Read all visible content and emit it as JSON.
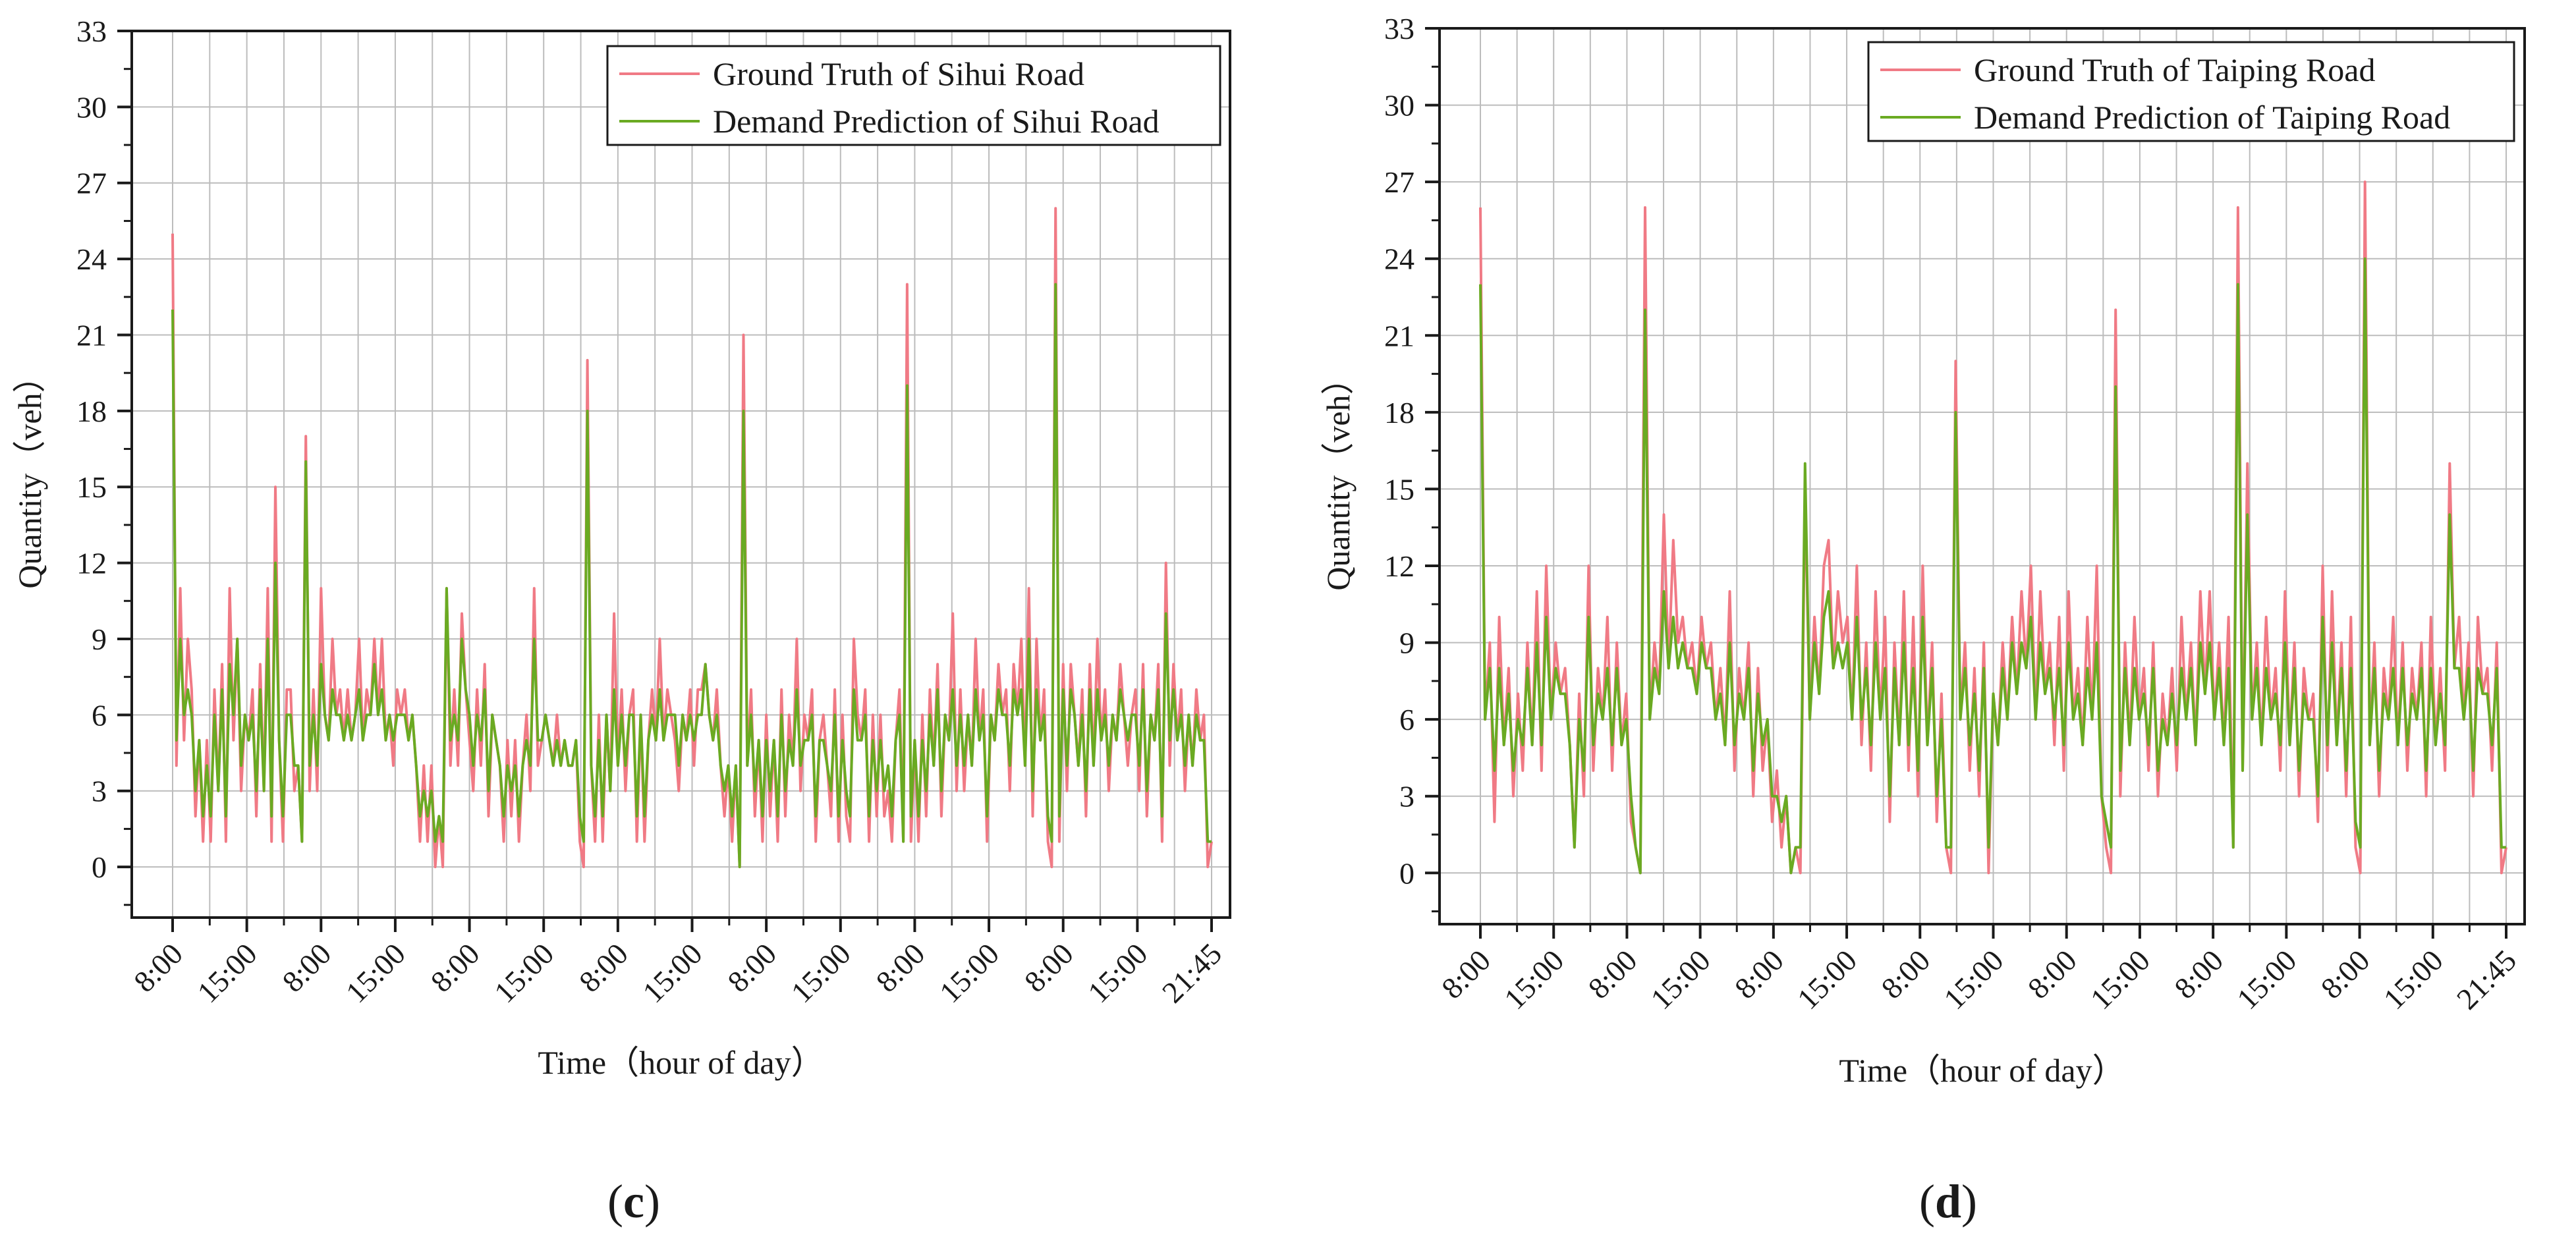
{
  "chart_data": [
    {
      "type": "line",
      "panel_label_open": "(",
      "panel_label_letter": "c",
      "panel_label_close": ")",
      "xlabel": "Time（hour of day）",
      "ylabel": "Quantity（veh）",
      "ylim": [
        -2,
        33
      ],
      "yticks": [
        0,
        3,
        6,
        9,
        12,
        15,
        18,
        21,
        24,
        27,
        30,
        33
      ],
      "x_range": [
        0,
        420
      ],
      "x_ticks": [
        {
          "x": 0,
          "label": "8:00"
        },
        {
          "x": 30,
          "label": "15:00"
        },
        {
          "x": 60,
          "label": "8:00"
        },
        {
          "x": 90,
          "label": "15:00"
        },
        {
          "x": 120,
          "label": "8:00"
        },
        {
          "x": 150,
          "label": "15:00"
        },
        {
          "x": 180,
          "label": "8:00"
        },
        {
          "x": 210,
          "label": "15:00"
        },
        {
          "x": 240,
          "label": "8:00"
        },
        {
          "x": 270,
          "label": "15:00"
        },
        {
          "x": 300,
          "label": "8:00"
        },
        {
          "x": 330,
          "label": "15:00"
        },
        {
          "x": 360,
          "label": "8:00"
        },
        {
          "x": 390,
          "label": "15:00"
        },
        {
          "x": 420,
          "label": "21:45"
        }
      ],
      "grid": true,
      "legend": "top-right",
      "series": [
        {
          "name": "Ground Truth of Sihui Road",
          "color": "#f07a85",
          "values": [
            25,
            4,
            11,
            5,
            9,
            7,
            2,
            5,
            1,
            5,
            1,
            7,
            3,
            8,
            1,
            11,
            5,
            9,
            3,
            6,
            5,
            7,
            2,
            8,
            3,
            11,
            1,
            15,
            5,
            1,
            7,
            7,
            3,
            4,
            1,
            17,
            3,
            7,
            3,
            11,
            6,
            5,
            9,
            6,
            7,
            5,
            7,
            5,
            6,
            9,
            5,
            7,
            6,
            9,
            6,
            9,
            5,
            6,
            4,
            7,
            6,
            7,
            5,
            6,
            4,
            1,
            4,
            1,
            4,
            0,
            2,
            0,
            11,
            4,
            7,
            4,
            10,
            7,
            5,
            3,
            7,
            4,
            8,
            2,
            6,
            5,
            4,
            1,
            5,
            2,
            5,
            1,
            4,
            6,
            3,
            11,
            4,
            5,
            6,
            5,
            4,
            6,
            4,
            5,
            4,
            4,
            5,
            1,
            0,
            20,
            4,
            1,
            6,
            1,
            6,
            3,
            10,
            4,
            7,
            3,
            6,
            7,
            1,
            6,
            1,
            5,
            7,
            5,
            9,
            5,
            7,
            6,
            5,
            3,
            6,
            5,
            7,
            4,
            7,
            7,
            8,
            6,
            5,
            7,
            4,
            2,
            4,
            1,
            4,
            0,
            21,
            4,
            7,
            2,
            5,
            1,
            6,
            2,
            5,
            1,
            7,
            2,
            6,
            4,
            9,
            3,
            6,
            5,
            7,
            1,
            5,
            6,
            4,
            2,
            7,
            1,
            6,
            2,
            1,
            9,
            6,
            5,
            7,
            1,
            6,
            2,
            6,
            2,
            3,
            1,
            5,
            7,
            1,
            23,
            1,
            5,
            1,
            6,
            2,
            7,
            4,
            8,
            2,
            6,
            5,
            10,
            3,
            7,
            3,
            6,
            4,
            9,
            5,
            7,
            1,
            6,
            5,
            8,
            6,
            7,
            3,
            8,
            6,
            9,
            4,
            11,
            2,
            9,
            5,
            7,
            1,
            0,
            26,
            1,
            8,
            3,
            8,
            6,
            4,
            7,
            2,
            8,
            4,
            9,
            5,
            7,
            3,
            6,
            5,
            8,
            6,
            4,
            6,
            7,
            3,
            8,
            2,
            6,
            5,
            8,
            1,
            12,
            4,
            8,
            5,
            7,
            3,
            6,
            4,
            7,
            5,
            6,
            0,
            1
          ]
        },
        {
          "name": "Demand Prediction of Sihui Road",
          "color": "#6aaa22",
          "values": [
            22,
            5,
            9,
            6,
            7,
            6,
            3,
            5,
            2,
            4,
            2,
            6,
            3,
            7,
            2,
            8,
            6,
            9,
            4,
            6,
            5,
            6,
            3,
            7,
            3,
            9,
            2,
            12,
            5,
            2,
            6,
            6,
            4,
            4,
            1,
            16,
            4,
            6,
            4,
            8,
            6,
            5,
            7,
            6,
            6,
            5,
            6,
            5,
            6,
            7,
            5,
            6,
            6,
            8,
            6,
            7,
            5,
            6,
            5,
            6,
            6,
            6,
            5,
            6,
            4,
            2,
            3,
            2,
            3,
            1,
            2,
            1,
            11,
            5,
            6,
            5,
            9,
            7,
            6,
            4,
            6,
            5,
            7,
            3,
            6,
            5,
            4,
            2,
            4,
            3,
            4,
            2,
            4,
            5,
            4,
            9,
            5,
            5,
            6,
            5,
            4,
            5,
            4,
            5,
            4,
            4,
            5,
            2,
            1,
            18,
            4,
            2,
            5,
            2,
            6,
            3,
            7,
            4,
            6,
            4,
            6,
            6,
            2,
            6,
            2,
            5,
            6,
            5,
            7,
            5,
            6,
            6,
            6,
            4,
            6,
            5,
            6,
            5,
            6,
            6,
            8,
            6,
            5,
            6,
            4,
            3,
            4,
            2,
            4,
            0,
            18,
            4,
            6,
            3,
            5,
            2,
            5,
            3,
            5,
            2,
            6,
            3,
            5,
            4,
            7,
            4,
            5,
            5,
            6,
            2,
            5,
            5,
            4,
            3,
            6,
            2,
            5,
            3,
            2,
            7,
            5,
            5,
            6,
            2,
            5,
            3,
            5,
            3,
            4,
            2,
            5,
            6,
            1,
            19,
            2,
            5,
            2,
            5,
            3,
            6,
            4,
            7,
            3,
            6,
            5,
            7,
            4,
            6,
            4,
            6,
            4,
            7,
            5,
            6,
            2,
            6,
            5,
            7,
            6,
            6,
            4,
            7,
            6,
            7,
            4,
            9,
            3,
            7,
            5,
            6,
            2,
            1,
            23,
            2,
            7,
            4,
            7,
            6,
            4,
            6,
            3,
            7,
            4,
            7,
            5,
            6,
            4,
            6,
            5,
            7,
            6,
            5,
            6,
            6,
            4,
            7,
            3,
            6,
            5,
            7,
            2,
            10,
            5,
            7,
            5,
            6,
            4,
            6,
            4,
            6,
            5,
            5,
            1,
            1
          ]
        }
      ]
    },
    {
      "type": "line",
      "panel_label_open": "(",
      "panel_label_letter": "d",
      "panel_label_close": ")",
      "xlabel": "Time（hour of day）",
      "ylabel": "Quantity（veh）",
      "ylim": [
        -2,
        33
      ],
      "yticks": [
        0,
        3,
        6,
        9,
        12,
        15,
        18,
        21,
        24,
        27,
        30,
        33
      ],
      "x_range": [
        0,
        420
      ],
      "x_ticks": [
        {
          "x": 0,
          "label": "8:00"
        },
        {
          "x": 30,
          "label": "15:00"
        },
        {
          "x": 60,
          "label": "8:00"
        },
        {
          "x": 90,
          "label": "15:00"
        },
        {
          "x": 120,
          "label": "8:00"
        },
        {
          "x": 150,
          "label": "15:00"
        },
        {
          "x": 180,
          "label": "8:00"
        },
        {
          "x": 210,
          "label": "15:00"
        },
        {
          "x": 240,
          "label": "8:00"
        },
        {
          "x": 270,
          "label": "15:00"
        },
        {
          "x": 300,
          "label": "8:00"
        },
        {
          "x": 330,
          "label": "15:00"
        },
        {
          "x": 360,
          "label": "8:00"
        },
        {
          "x": 390,
          "label": "15:00"
        },
        {
          "x": 420,
          "label": "21:45"
        }
      ],
      "grid": true,
      "legend": "top-right",
      "series": [
        {
          "name": "Ground Truth of Taiping Road",
          "color": "#f07a85",
          "values": [
            26,
            6,
            9,
            2,
            10,
            5,
            8,
            3,
            7,
            4,
            9,
            5,
            11,
            4,
            12,
            6,
            9,
            7,
            8,
            5,
            1,
            7,
            3,
            12,
            4,
            8,
            6,
            10,
            4,
            9,
            5,
            7,
            2,
            1,
            0,
            26,
            6,
            9,
            7,
            14,
            8,
            13,
            9,
            10,
            8,
            9,
            7,
            10,
            8,
            9,
            6,
            8,
            5,
            11,
            4,
            8,
            6,
            9,
            3,
            8,
            4,
            6,
            2,
            4,
            1,
            3,
            0,
            1,
            0,
            15,
            6,
            10,
            7,
            12,
            13,
            8,
            11,
            9,
            10,
            6,
            12,
            5,
            9,
            4,
            11,
            6,
            10,
            2,
            9,
            5,
            11,
            4,
            10,
            3,
            12,
            5,
            9,
            2,
            7,
            1,
            0,
            20,
            6,
            9,
            4,
            8,
            3,
            9,
            0,
            7,
            5,
            9,
            6,
            10,
            7,
            11,
            8,
            12,
            6,
            11,
            7,
            9,
            5,
            10,
            4,
            11,
            6,
            8,
            5,
            10,
            6,
            12,
            3,
            1,
            0,
            22,
            3,
            9,
            5,
            10,
            6,
            8,
            4,
            9,
            3,
            7,
            5,
            8,
            4,
            10,
            6,
            9,
            5,
            11,
            7,
            11,
            6,
            9,
            5,
            10,
            1,
            26,
            4,
            16,
            6,
            9,
            5,
            10,
            6,
            8,
            4,
            11,
            5,
            9,
            3,
            8,
            6,
            7,
            2,
            12,
            4,
            11,
            5,
            9,
            3,
            10,
            1,
            0,
            27,
            5,
            9,
            3,
            8,
            6,
            10,
            5,
            9,
            4,
            8,
            6,
            9,
            3,
            10,
            5,
            8,
            4,
            16,
            8,
            10,
            6,
            9,
            3,
            10,
            7,
            8,
            4,
            9,
            0,
            1
          ]
        },
        {
          "name": "Demand Prediction of Taiping Road",
          "color": "#6aaa22",
          "values": [
            23,
            6,
            8,
            4,
            8,
            5,
            7,
            4,
            6,
            5,
            8,
            5,
            9,
            5,
            10,
            6,
            8,
            7,
            7,
            5,
            1,
            6,
            4,
            10,
            5,
            7,
            6,
            8,
            5,
            8,
            5,
            6,
            3,
            1,
            0,
            22,
            6,
            8,
            7,
            11,
            8,
            10,
            8,
            9,
            8,
            8,
            7,
            9,
            8,
            8,
            6,
            7,
            5,
            9,
            5,
            7,
            6,
            8,
            4,
            7,
            5,
            6,
            3,
            3,
            2,
            3,
            0,
            1,
            1,
            16,
            6,
            9,
            7,
            10,
            11,
            8,
            9,
            8,
            9,
            6,
            10,
            6,
            8,
            5,
            9,
            6,
            8,
            3,
            8,
            5,
            9,
            5,
            8,
            4,
            10,
            5,
            8,
            3,
            6,
            1,
            1,
            18,
            6,
            8,
            5,
            7,
            4,
            8,
            1,
            7,
            5,
            8,
            6,
            9,
            7,
            9,
            8,
            10,
            6,
            9,
            7,
            8,
            6,
            8,
            5,
            9,
            6,
            7,
            5,
            8,
            6,
            9,
            3,
            2,
            1,
            19,
            4,
            8,
            5,
            8,
            6,
            7,
            5,
            8,
            4,
            6,
            5,
            7,
            5,
            8,
            6,
            8,
            5,
            9,
            7,
            9,
            6,
            8,
            5,
            8,
            1,
            23,
            4,
            14,
            6,
            8,
            5,
            8,
            6,
            7,
            5,
            9,
            5,
            8,
            4,
            7,
            6,
            6,
            3,
            10,
            5,
            9,
            5,
            8,
            4,
            8,
            2,
            1,
            24,
            5,
            8,
            4,
            7,
            6,
            8,
            5,
            8,
            5,
            7,
            6,
            8,
            4,
            8,
            5,
            7,
            5,
            14,
            8,
            8,
            6,
            8,
            4,
            8,
            7,
            7,
            5,
            8,
            1,
            1
          ]
        }
      ]
    }
  ]
}
